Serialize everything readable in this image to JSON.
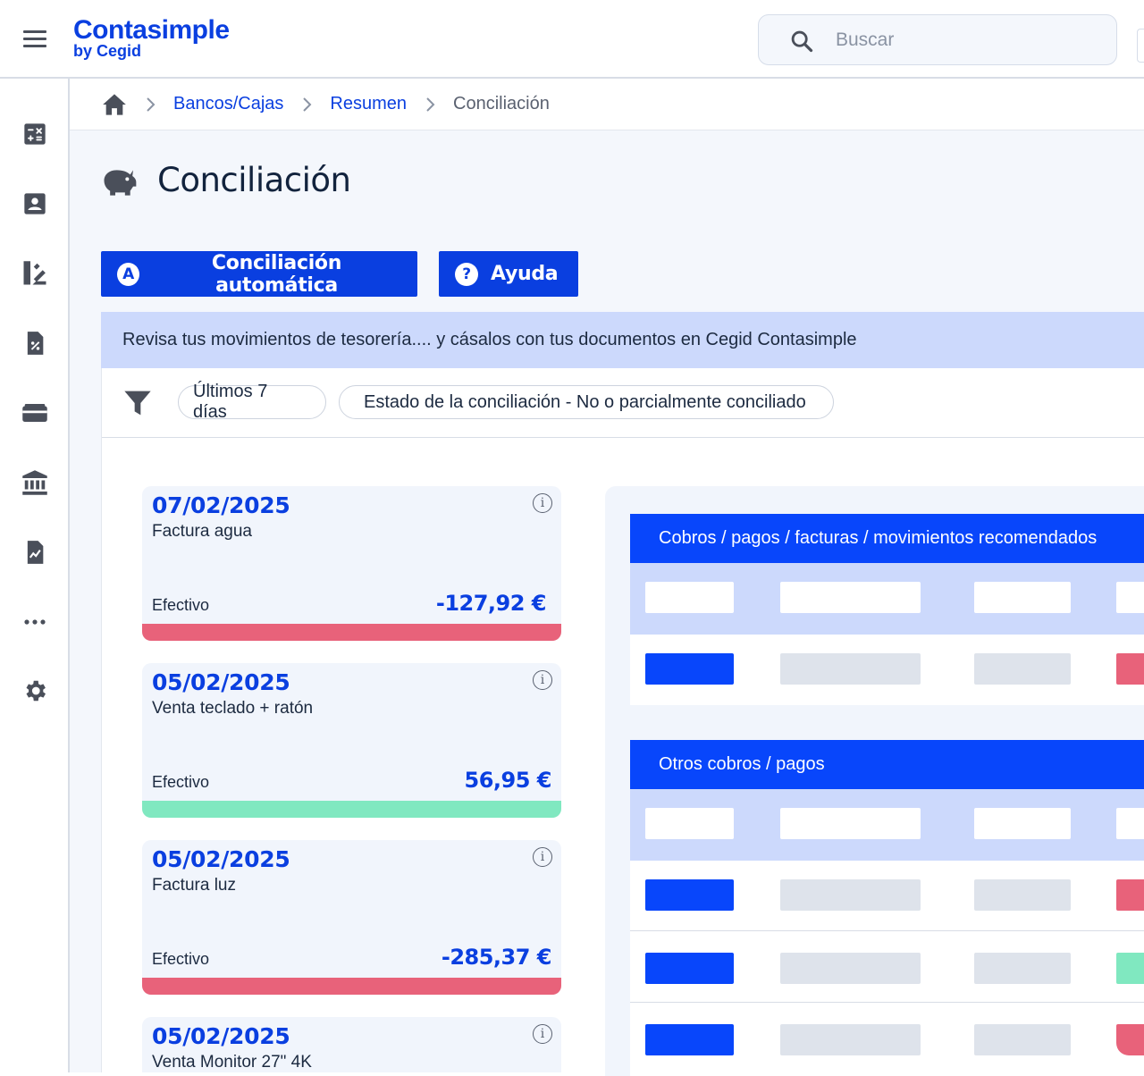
{
  "app": {
    "logo": "Contasimple",
    "logo_sub": "by Cegid"
  },
  "search": {
    "placeholder": "Buscar",
    "icon": "search-icon"
  },
  "sidebar": {
    "items": [
      {
        "icon": "calculator-icon"
      },
      {
        "icon": "contact-card-icon"
      },
      {
        "icon": "ledger-icon"
      },
      {
        "icon": "tax-document-icon"
      },
      {
        "icon": "wallet-icon"
      },
      {
        "icon": "bank-icon"
      },
      {
        "icon": "report-chart-icon"
      },
      {
        "icon": "more-icon"
      },
      {
        "icon": "gear-icon"
      }
    ]
  },
  "breadcrumb": {
    "items": [
      {
        "label": "Bancos/Cajas"
      },
      {
        "label": "Resumen"
      },
      {
        "label": "Conciliación"
      }
    ]
  },
  "page": {
    "title": "Conciliación",
    "title_icon": "piggy-bank-icon"
  },
  "actions": {
    "auto_label": "Conciliación automática",
    "auto_badge": "A",
    "help_label": "Ayuda",
    "help_badge": "?"
  },
  "info_message": "Revisa tus movimientos de tesorería.... y cásalos con tus documentos en Cegid Contasimple",
  "filters": {
    "chips": [
      {
        "label": "Últimos 7 días"
      },
      {
        "label": "Estado de la conciliación - No o parcialmente conciliado"
      }
    ]
  },
  "movements": [
    {
      "date": "07/02/2025",
      "description": "Factura agua",
      "method": "Efectivo",
      "amount": "-127,92 €",
      "status_color": "#e8627a"
    },
    {
      "date": "05/02/2025",
      "description": "Venta teclado + ratón",
      "method": "Efectivo",
      "amount": "56,95 €",
      "status_color": "#80e8c0"
    },
    {
      "date": "05/02/2025",
      "description": "Factura luz",
      "method": "Efectivo",
      "amount": "-285,37 €",
      "status_color": "#e8627a"
    },
    {
      "date": "05/02/2025",
      "description": "Venta Monitor 27\" 4K",
      "method": "Efectivo",
      "amount": "",
      "status_color": ""
    }
  ],
  "match_panel": {
    "recommended_title": "Cobros / pagos / facturas / movimientos recomendados",
    "others_title": "Otros cobros / pagos"
  },
  "colors": {
    "accent": "#0a3fe0",
    "section_header": "#0846fb",
    "negative": "#e8627a",
    "positive": "#80e8c0",
    "info_bg": "#ccd9fc"
  }
}
